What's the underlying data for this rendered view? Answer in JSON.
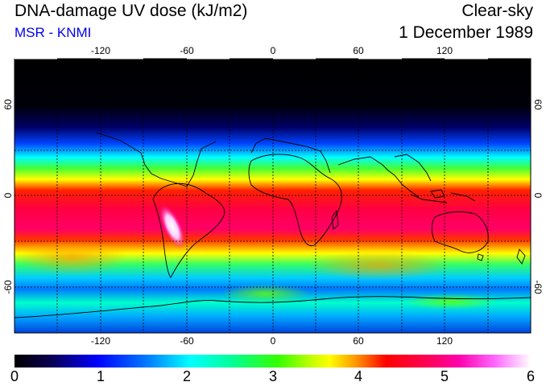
{
  "header": {
    "title": "DNA-damage UV dose (kJ/m2)",
    "subtitle": "MSR - KNMI",
    "condition": "Clear-sky",
    "date": "1 December 1989"
  },
  "map": {
    "lon_ticks": [
      -120,
      -60,
      0,
      60,
      120
    ],
    "lon_labels": [
      "-120",
      "-60",
      "0",
      "60",
      "120"
    ],
    "lat_ticks": [
      60,
      0,
      -60
    ],
    "lat_labels": [
      "60",
      "0",
      "-60"
    ],
    "lon_range": [
      -180,
      180
    ],
    "lat_range": [
      -90,
      90
    ],
    "gridlines": "dotted"
  },
  "colorbar": {
    "labels": [
      "0",
      "1",
      "2",
      "3",
      "4",
      "5",
      "6"
    ],
    "range": [
      0,
      6
    ],
    "colors": [
      "#000000",
      "#0000ff",
      "#00ffff",
      "#33ff00",
      "#ffff00",
      "#ff0000",
      "#ff00aa",
      "#ffffff"
    ]
  }
}
